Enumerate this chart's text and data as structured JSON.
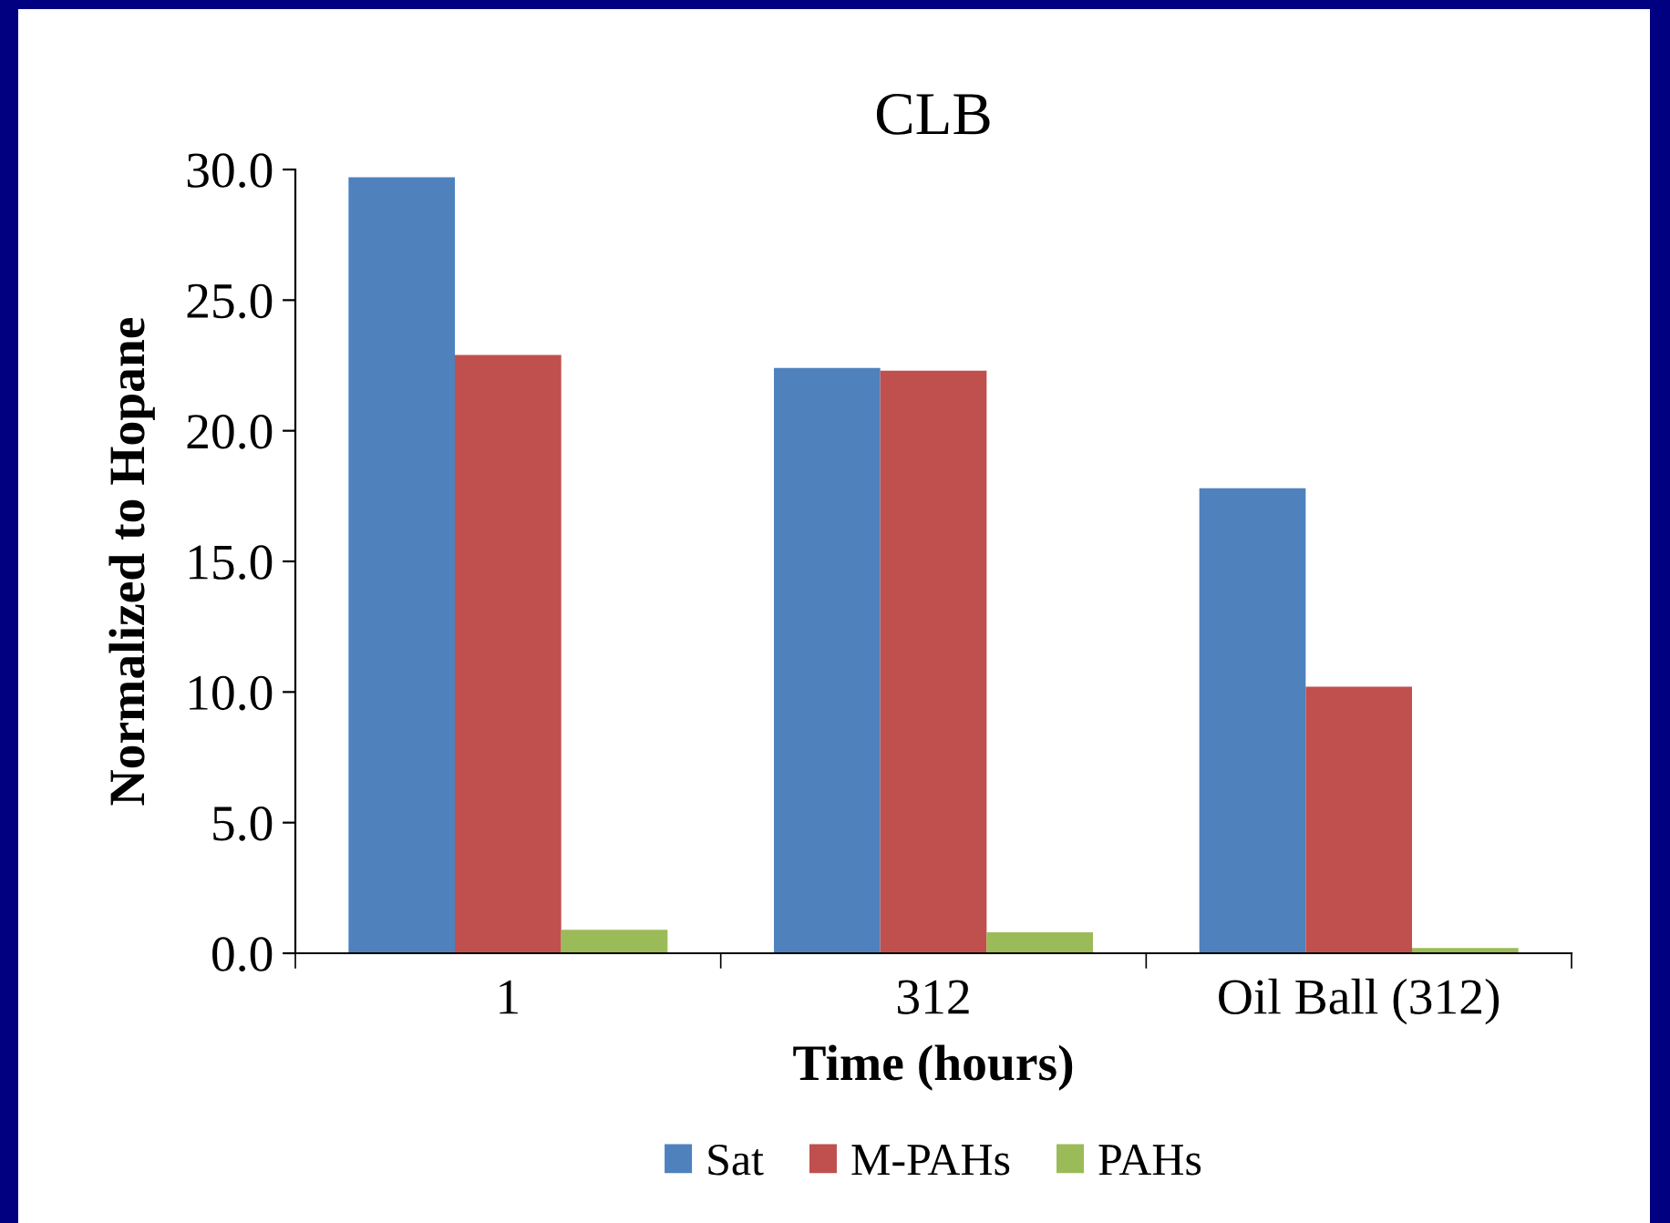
{
  "chart_data": {
    "type": "bar",
    "title": "CLB",
    "xlabel": "Time (hours)",
    "ylabel": "Normalized to Hopane",
    "categories": [
      "1",
      "312",
      "Oil Ball (312)"
    ],
    "series": [
      {
        "name": "Sat",
        "color": "#4f81bd",
        "values": [
          29.7,
          22.4,
          17.8
        ]
      },
      {
        "name": "M-PAHs",
        "color": "#c0504d",
        "values": [
          22.9,
          22.3,
          10.2
        ]
      },
      {
        "name": "PAHs",
        "color": "#9bbb59",
        "values": [
          0.9,
          0.8,
          0.2
        ]
      }
    ],
    "ylim": [
      0,
      30
    ],
    "yticks": [
      {
        "value": 0,
        "label": "0.0"
      },
      {
        "value": 5,
        "label": "5.0"
      },
      {
        "value": 10,
        "label": "10.0"
      },
      {
        "value": 15,
        "label": "15.0"
      },
      {
        "value": 20,
        "label": "20.0"
      },
      {
        "value": 25,
        "label": "25.0"
      },
      {
        "value": 30,
        "label": "30.0"
      }
    ],
    "grid": false,
    "legend": "bottom"
  }
}
